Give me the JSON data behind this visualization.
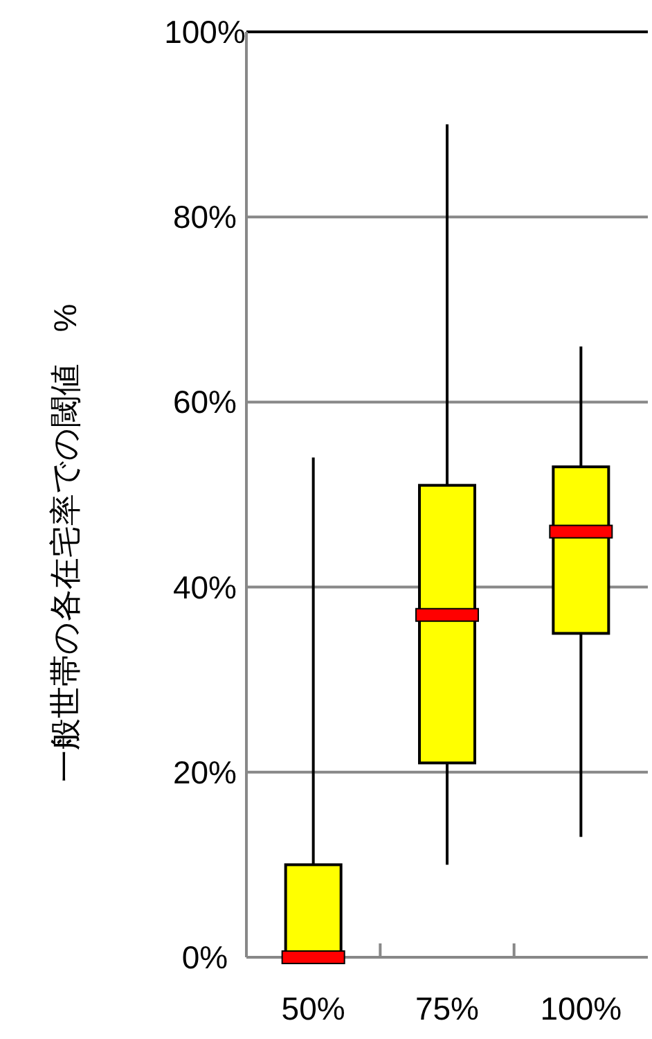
{
  "chart_data": {
    "type": "box",
    "ylabel": "一般世帯の各在宅率での閾値　%",
    "categories": [
      "50%",
      "75%",
      "100%"
    ],
    "series": [
      {
        "color": "#ffff00",
        "boxes": [
          {
            "low": 0,
            "q1": 0,
            "median": 0,
            "q3": 10,
            "high": 54
          },
          {
            "low": 10,
            "q1": 21,
            "median": 37,
            "q3": 51,
            "high": 90
          },
          {
            "low": 13,
            "q1": 35,
            "median": 46,
            "q3": 53,
            "high": 66
          }
        ]
      }
    ],
    "ylim": [
      0,
      100
    ],
    "yticks": [
      {
        "value": 0,
        "label": "0%"
      },
      {
        "value": 20,
        "label": "20%"
      },
      {
        "value": 40,
        "label": "40%"
      },
      {
        "value": 60,
        "label": "60%"
      },
      {
        "value": 80,
        "label": "80%"
      },
      {
        "value": 100,
        "label": "100%"
      }
    ],
    "grid": "y"
  }
}
